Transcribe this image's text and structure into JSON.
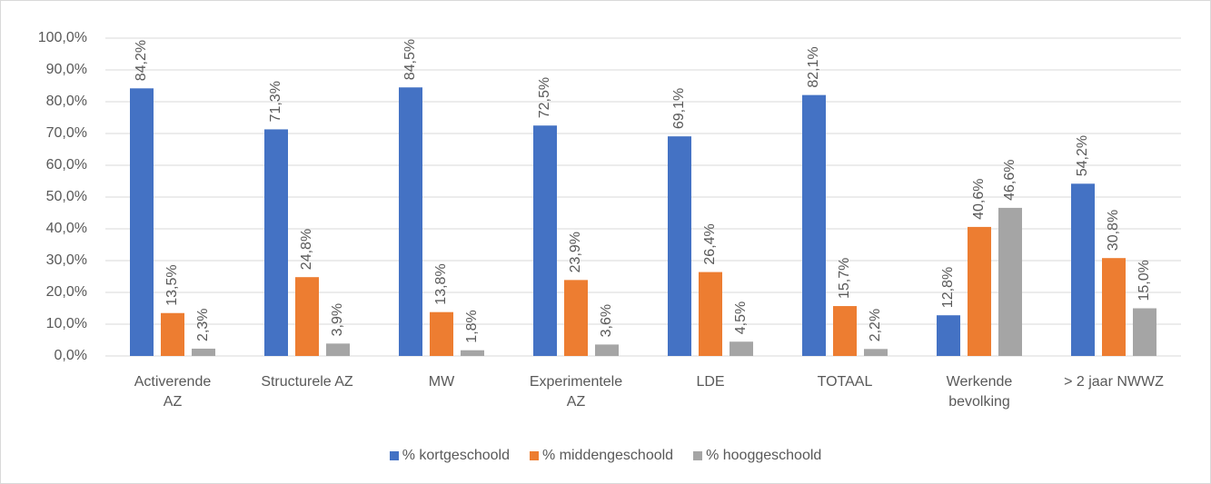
{
  "chart_data": {
    "type": "bar",
    "categories": [
      "Activerende\nAZ",
      "Structurele AZ",
      "MW",
      "Experimentele\nAZ",
      "LDE",
      "TOTAAL",
      "Werkende\nbevolking",
      "> 2 jaar NWWZ"
    ],
    "series": [
      {
        "name": "% kortgeschoold",
        "color": "#4472c4",
        "values": [
          84.2,
          71.3,
          84.5,
          72.5,
          69.1,
          82.1,
          12.8,
          54.2
        ],
        "value_labels": [
          "84,2%",
          "71,3%",
          "84,5%",
          "72,5%",
          "69,1%",
          "82,1%",
          "12,8%",
          "54,2%"
        ]
      },
      {
        "name": "% middengeschoold",
        "color": "#ed7d31",
        "values": [
          13.5,
          24.8,
          13.8,
          23.9,
          26.4,
          15.7,
          40.6,
          30.8
        ],
        "value_labels": [
          "13,5%",
          "24,8%",
          "13,8%",
          "23,9%",
          "26,4%",
          "15,7%",
          "40,6%",
          "30,8%"
        ]
      },
      {
        "name": "% hooggeschoold",
        "color": "#a5a5a5",
        "values": [
          2.3,
          3.9,
          1.8,
          3.6,
          4.5,
          2.2,
          46.6,
          15.0
        ],
        "value_labels": [
          "2,3%",
          "3,9%",
          "1,8%",
          "3,6%",
          "4,5%",
          "2,2%",
          "46,6%",
          "15,0%"
        ]
      }
    ],
    "ylim": [
      0,
      100
    ],
    "yticks": [
      {
        "value": 0,
        "label": "0,0%"
      },
      {
        "value": 10,
        "label": "10,0%"
      },
      {
        "value": 20,
        "label": "20,0%"
      },
      {
        "value": 30,
        "label": "30,0%"
      },
      {
        "value": 40,
        "label": "40,0%"
      },
      {
        "value": 50,
        "label": "50,0%"
      },
      {
        "value": 60,
        "label": "60,0%"
      },
      {
        "value": 70,
        "label": "70,0%"
      },
      {
        "value": 80,
        "label": "80,0%"
      },
      {
        "value": 90,
        "label": "90,0%"
      },
      {
        "value": 100,
        "label": "100,0%"
      }
    ],
    "grid": true,
    "legend": "bottom"
  }
}
